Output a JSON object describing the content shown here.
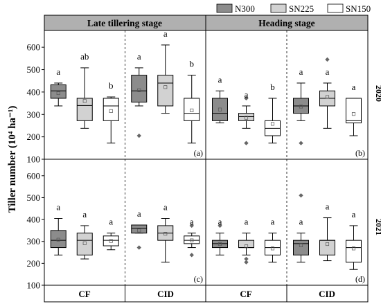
{
  "legend": [
    {
      "name": "N300",
      "color": "#8c8c8c"
    },
    {
      "name": "SN225",
      "color": "#d2d2d2"
    },
    {
      "name": "SN150",
      "color": "#ffffff"
    }
  ],
  "columns": [
    {
      "label": "Late tillering stage",
      "color": "#b0b0b0"
    },
    {
      "label": "Heading stage",
      "color": "#b0b0b0"
    }
  ],
  "rows": [
    {
      "label": "2020"
    },
    {
      "label": "2021"
    }
  ],
  "groups": [
    "CF",
    "CID"
  ],
  "ylabel": "Tiller number (10⁴ ha⁻¹)",
  "chart_data": {
    "type": "box",
    "ylim": [
      100,
      650
    ],
    "yticks": [
      100,
      200,
      300,
      400,
      500,
      600
    ],
    "series": [
      "N300",
      "SN225",
      "SN150"
    ],
    "panels": [
      {
        "label": "(a)",
        "stage": "Late tillering stage",
        "year": "2020",
        "boxes": [
          {
            "group": "CF",
            "series": "N300",
            "whislo": 338,
            "q1": 372,
            "med": 405,
            "q3": 432,
            "whishi": 440,
            "mean": 395,
            "fliers": [],
            "letter": "a"
          },
          {
            "group": "CF",
            "series": "SN225",
            "whislo": 238,
            "q1": 272,
            "med": 340,
            "q3": 372,
            "whishi": 508,
            "mean": 360,
            "fliers": [],
            "letter": "ab"
          },
          {
            "group": "CF",
            "series": "SN150",
            "whislo": 172,
            "q1": 272,
            "med": 338,
            "q3": 372,
            "whishi": 378,
            "mean": 315,
            "fliers": [],
            "letter": "b"
          },
          {
            "group": "CID",
            "series": "N300",
            "whislo": 338,
            "q1": 355,
            "med": 405,
            "q3": 475,
            "whishi": 508,
            "mean": 408,
            "fliers": [
              205
            ],
            "letter": "a"
          },
          {
            "group": "CID",
            "series": "SN225",
            "whislo": 305,
            "q1": 338,
            "med": 440,
            "q3": 475,
            "whishi": 610,
            "mean": 422,
            "fliers": [],
            "letter": "a"
          },
          {
            "group": "CID",
            "series": "SN150",
            "whislo": 172,
            "q1": 272,
            "med": 305,
            "q3": 372,
            "whishi": 475,
            "mean": 318,
            "fliers": [],
            "letter": "b"
          }
        ]
      },
      {
        "label": "(b)",
        "stage": "Heading stage",
        "year": "2020",
        "boxes": [
          {
            "group": "CF",
            "series": "N300",
            "whislo": 262,
            "q1": 272,
            "med": 305,
            "q3": 372,
            "whishi": 405,
            "mean": 322,
            "fliers": [],
            "letter": "a"
          },
          {
            "group": "CF",
            "series": "SN225",
            "whislo": 238,
            "q1": 272,
            "med": 290,
            "q3": 305,
            "whishi": 338,
            "mean": 285,
            "fliers": [
              172,
              372
            ],
            "letter": "a"
          },
          {
            "group": "CF",
            "series": "SN150",
            "whislo": 172,
            "q1": 205,
            "med": 238,
            "q3": 272,
            "whishi": 372,
            "mean": 258,
            "fliers": [],
            "letter": "b"
          },
          {
            "group": "CID",
            "series": "N300",
            "whislo": 272,
            "q1": 305,
            "med": 338,
            "q3": 372,
            "whishi": 440,
            "mean": 335,
            "fliers": [
              172
            ],
            "letter": "a"
          },
          {
            "group": "CID",
            "series": "SN225",
            "whislo": 238,
            "q1": 338,
            "med": 372,
            "q3": 405,
            "whishi": 440,
            "mean": 378,
            "fliers": [
              545
            ],
            "letter": "a"
          },
          {
            "group": "CID",
            "series": "SN150",
            "whislo": 205,
            "q1": 262,
            "med": 272,
            "q3": 372,
            "whishi": 372,
            "mean": 302,
            "fliers": [],
            "letter": "a"
          }
        ]
      },
      {
        "label": "(c)",
        "stage": "Late tillering stage",
        "year": "2021",
        "boxes": [
          {
            "group": "CF",
            "series": "N300",
            "whislo": 238,
            "q1": 272,
            "med": 305,
            "q3": 350,
            "whishi": 405,
            "mean": 308,
            "fliers": [],
            "letter": "a"
          },
          {
            "group": "CF",
            "series": "SN225",
            "whislo": 220,
            "q1": 238,
            "med": 305,
            "q3": 338,
            "whishi": 372,
            "mean": 292,
            "fliers": [],
            "letter": "a"
          },
          {
            "group": "CF",
            "series": "SN150",
            "whislo": 262,
            "q1": 280,
            "med": 305,
            "q3": 325,
            "whishi": 338,
            "mean": 302,
            "fliers": [],
            "letter": "a"
          },
          {
            "group": "CID",
            "series": "N300",
            "whislo": 338,
            "q1": 338,
            "med": 360,
            "q3": 375,
            "whishi": 375,
            "mean": 350,
            "fliers": [
              272
            ],
            "letter": "a"
          },
          {
            "group": "CID",
            "series": "SN225",
            "whislo": 205,
            "q1": 305,
            "med": 338,
            "q3": 372,
            "whishi": 405,
            "mean": 335,
            "fliers": [],
            "letter": "a"
          },
          {
            "group": "CID",
            "series": "SN150",
            "whislo": 272,
            "q1": 290,
            "med": 305,
            "q3": 325,
            "whishi": 338,
            "mean": 305,
            "fliers": [
              238,
              372
            ],
            "letter": "a"
          }
        ]
      },
      {
        "label": "(d)",
        "stage": "Heading stage",
        "year": "2021",
        "boxes": [
          {
            "group": "CF",
            "series": "N300",
            "whislo": 238,
            "q1": 272,
            "med": 290,
            "q3": 305,
            "whishi": 338,
            "mean": 288,
            "fliers": [
              372
            ],
            "letter": "a"
          },
          {
            "group": "CF",
            "series": "SN225",
            "whislo": 238,
            "q1": 272,
            "med": 272,
            "q3": 305,
            "whishi": 338,
            "mean": 278,
            "fliers": [
              205,
              220
            ],
            "letter": "a"
          },
          {
            "group": "CF",
            "series": "SN150",
            "whislo": 205,
            "q1": 238,
            "med": 272,
            "q3": 305,
            "whishi": 338,
            "mean": 268,
            "fliers": [],
            "letter": "a"
          },
          {
            "group": "CID",
            "series": "N300",
            "whislo": 205,
            "q1": 238,
            "med": 290,
            "q3": 305,
            "whishi": 338,
            "mean": 282,
            "fliers": [
              510
            ],
            "letter": "a"
          },
          {
            "group": "CID",
            "series": "SN225",
            "whislo": 212,
            "q1": 238,
            "med": 305,
            "q3": 305,
            "whishi": 408,
            "mean": 288,
            "fliers": [],
            "letter": "a"
          },
          {
            "group": "CID",
            "series": "SN150",
            "whislo": 172,
            "q1": 205,
            "med": 272,
            "q3": 305,
            "whishi": 372,
            "mean": 268,
            "fliers": [],
            "letter": "a"
          }
        ]
      }
    ]
  }
}
